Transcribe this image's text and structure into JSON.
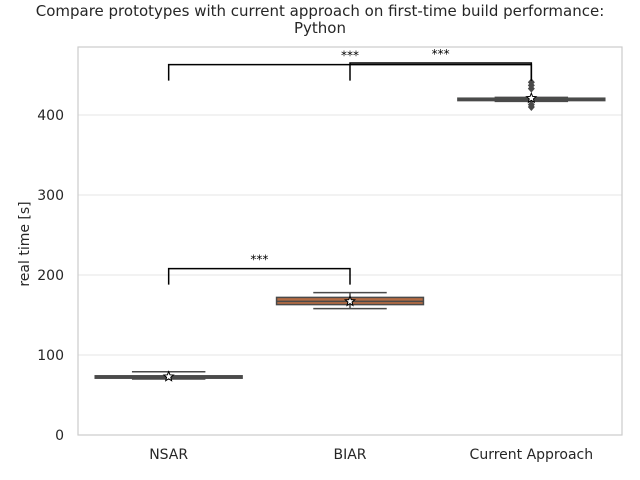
{
  "chart_data": {
    "type": "box",
    "title_lines": [
      "Compare prototypes with current approach on first-time build performance:",
      "Python"
    ],
    "xlabel": "",
    "ylabel": "real time [s]",
    "ylim": [
      0,
      485
    ],
    "yticks": [
      0,
      100,
      200,
      300,
      400
    ],
    "grid": "horizontal",
    "categories": [
      "NSAR",
      "BIAR",
      "Current Approach"
    ],
    "boxes": [
      {
        "category": "NSAR",
        "color": "#4d72b0",
        "whisker_low": 70,
        "q1": 71,
        "median": 72.5,
        "q3": 74,
        "whisker_high": 79,
        "mean": 73,
        "outliers": []
      },
      {
        "category": "BIAR",
        "color": "#dd8452",
        "whisker_low": 158,
        "q1": 163,
        "median": 167,
        "q3": 172,
        "whisker_high": 178,
        "mean": 167,
        "outliers": []
      },
      {
        "category": "Current Approach",
        "color": "#55a868",
        "whisker_low": 417,
        "q1": 418,
        "median": 419,
        "q3": 421,
        "whisker_high": 422,
        "mean": 421,
        "outliers": [
          410,
          413,
          433,
          437,
          441
        ]
      }
    ],
    "annotations": [
      {
        "from": "NSAR",
        "to": "BIAR",
        "label": "***",
        "y": 208,
        "left_drop_to": 188,
        "right_drop_to": 188
      },
      {
        "from": "NSAR",
        "to": "Current Approach",
        "label": "***",
        "y": 463,
        "left_drop_to": 443,
        "right_drop_to": 443
      },
      {
        "from": "BIAR",
        "to": "Current Approach",
        "label": "***",
        "y": 465,
        "left_drop_to": 443,
        "right_drop_to": 443
      }
    ]
  }
}
